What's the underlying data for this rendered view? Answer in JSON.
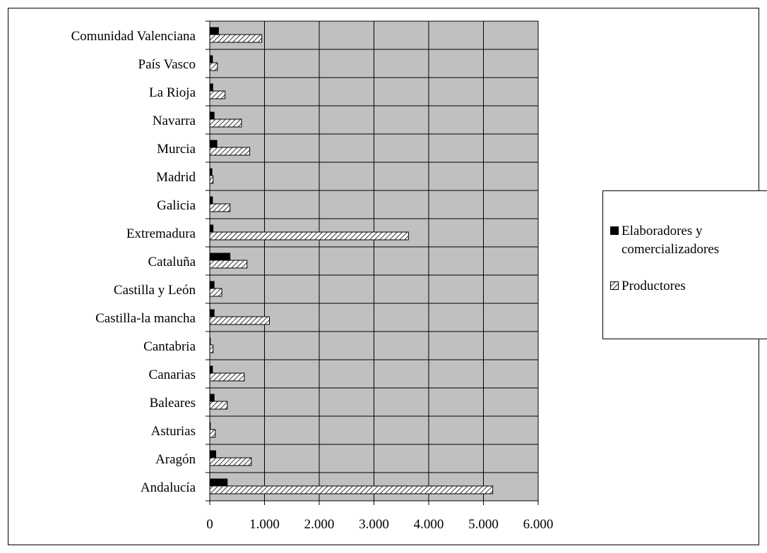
{
  "chart_data": {
    "type": "bar",
    "orientation": "horizontal",
    "categories": [
      "Comunidad Valenciana",
      "País Vasco",
      "La Rioja",
      "Navarra",
      "Murcia",
      "Madrid",
      "Galicia",
      "Extremadura",
      "Cataluña",
      "Castilla y León",
      "Castilla-la mancha",
      "Cantabria",
      "Canarias",
      "Baleares",
      "Asturias",
      "Aragón",
      "Andalucía"
    ],
    "series": [
      {
        "name": "Elaboradores y comercializadores",
        "color": "#000000",
        "pattern": "solid",
        "values": [
          160,
          50,
          55,
          80,
          130,
          40,
          50,
          60,
          370,
          80,
          80,
          10,
          50,
          80,
          10,
          110,
          320
        ]
      },
      {
        "name": "Productores",
        "color": "#ffffff",
        "pattern": "diagonal-hatch",
        "values": [
          950,
          140,
          280,
          580,
          730,
          60,
          370,
          3630,
          680,
          220,
          1090,
          60,
          630,
          320,
          100,
          760,
          5170
        ]
      }
    ],
    "xticks": [
      "0",
      "1.000",
      "2.000",
      "3.000",
      "4.000",
      "5.000",
      "6.000"
    ],
    "xlim": [
      0,
      6000
    ],
    "plot_background": "#c0c0c0",
    "grid": true,
    "legend_position": "right"
  },
  "legend": {
    "items": [
      {
        "line1": "Elaboradores y",
        "line2": "comercializadores"
      },
      {
        "line1": "Productores",
        "line2": ""
      }
    ]
  }
}
